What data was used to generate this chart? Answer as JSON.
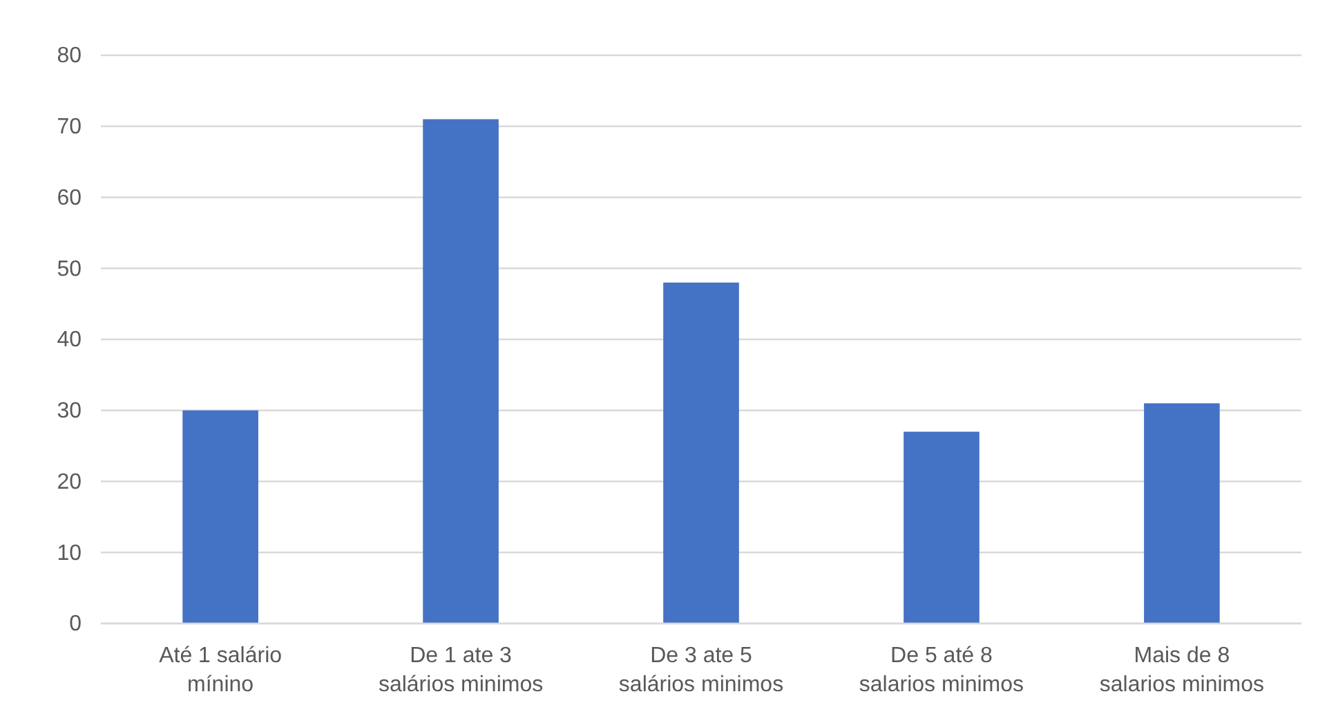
{
  "chart_data": {
    "type": "bar",
    "categories": [
      "Até 1 salário mínino",
      "De 1 ate 3 salários minimos",
      "De 3 ate 5 salários minimos",
      "De 5 até 8 salarios minimos",
      "Mais de 8 salarios minimos"
    ],
    "values": [
      30,
      71,
      48,
      27,
      31
    ],
    "color": "#4472c4",
    "ylim": [
      0,
      80
    ],
    "yticks": [
      0,
      10,
      20,
      30,
      40,
      50,
      60,
      70,
      80
    ],
    "grid": "y"
  }
}
